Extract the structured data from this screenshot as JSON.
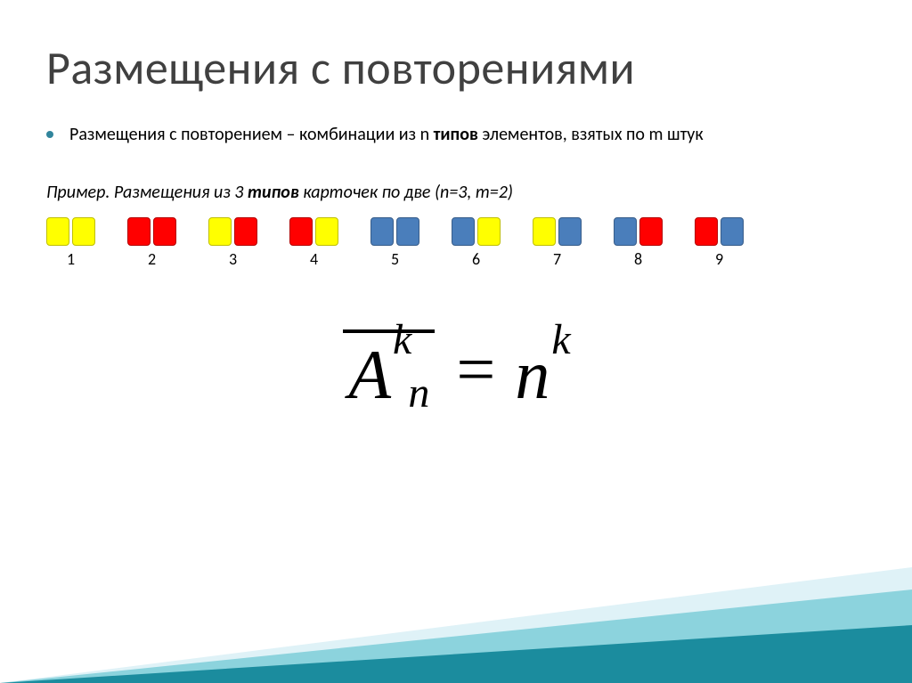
{
  "title": {
    "text": "Размещения с повторениями",
    "color": "#404040"
  },
  "bullet": {
    "dot_color": "#31859c",
    "pre": "Размещения с повторением – комбинации из n ",
    "bold1": "типов",
    "mid": " элементов, взятых по m штук"
  },
  "example": {
    "pre": "Пример. Размещения из 3 ",
    "bold": "типов",
    "post": " карточек по две (n=3, m=2)"
  },
  "colors": {
    "yellow": {
      "fill": "#ffff00",
      "border": "#bfbf00"
    },
    "red": {
      "fill": "#ff0000",
      "border": "#b30000"
    },
    "blue": {
      "fill": "#4a7ebb",
      "border": "#385d8a"
    }
  },
  "arrangements": {
    "type": "infographic",
    "pairs": [
      {
        "num": "1",
        "left": "yellow",
        "right": "yellow"
      },
      {
        "num": "2",
        "left": "red",
        "right": "red"
      },
      {
        "num": "3",
        "left": "yellow",
        "right": "red"
      },
      {
        "num": "4",
        "left": "red",
        "right": "yellow"
      },
      {
        "num": "5",
        "left": "blue",
        "right": "blue"
      },
      {
        "num": "6",
        "left": "blue",
        "right": "yellow"
      },
      {
        "num": "7",
        "left": "yellow",
        "right": "blue"
      },
      {
        "num": "8",
        "left": "blue",
        "right": "red"
      },
      {
        "num": "9",
        "left": "red",
        "right": "blue"
      }
    ]
  },
  "formula": {
    "A": "A",
    "A_sup": "k",
    "A_sub": "n",
    "equals": "=",
    "rhs_base": "n",
    "rhs_sup": "k",
    "bar_color": "#000000"
  },
  "accent": {
    "triangle_light": "#dff2f7",
    "triangle_mid": "#8cd3dd",
    "triangle_dark": "#1b8c9e"
  }
}
